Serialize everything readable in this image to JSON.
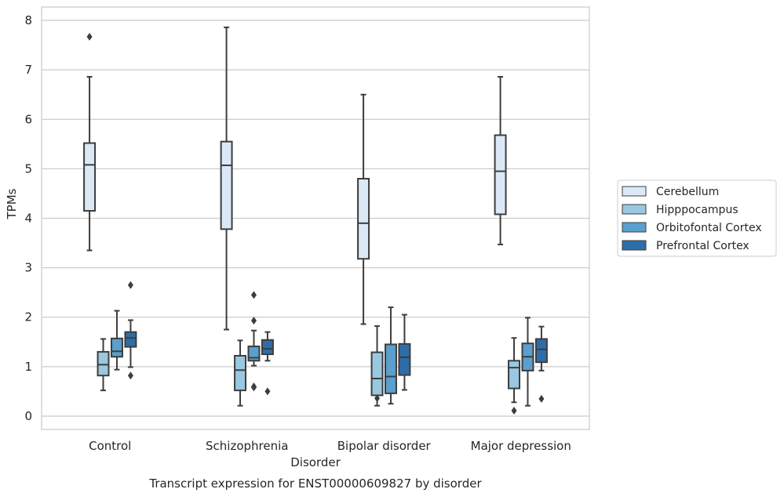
{
  "chart_data": {
    "type": "box",
    "caption": "Transcript expression for ENST00000609827 by disorder",
    "xlabel": "Disorder",
    "ylabel": "TPMs",
    "ylim": [
      -0.27,
      8.27
    ],
    "yticks": [
      0,
      1,
      2,
      3,
      4,
      5,
      6,
      7,
      8
    ],
    "grid": true,
    "legend_position": "right",
    "categories": [
      "Control",
      "Schizophrenia",
      "Bipolar disorder",
      "Major depression"
    ],
    "series": [
      {
        "name": "Cerebellum",
        "color": "#dbe9f6",
        "boxes": [
          {
            "whisker_low": 3.35,
            "q1": 4.15,
            "median": 5.08,
            "q3": 5.52,
            "whisker_high": 6.86,
            "outliers": [
              7.67
            ]
          },
          {
            "whisker_low": 1.75,
            "q1": 3.78,
            "median": 5.07,
            "q3": 5.55,
            "whisker_high": 7.86,
            "outliers": []
          },
          {
            "whisker_low": 1.86,
            "q1": 3.18,
            "median": 3.9,
            "q3": 4.8,
            "whisker_high": 6.5,
            "outliers": []
          },
          {
            "whisker_low": 3.47,
            "q1": 4.08,
            "median": 4.95,
            "q3": 5.68,
            "whisker_high": 6.86,
            "outliers": []
          }
        ]
      },
      {
        "name": "Hipppocampus",
        "color": "#9ac8e0",
        "boxes": [
          {
            "whisker_low": 0.52,
            "q1": 0.82,
            "median": 1.04,
            "q3": 1.3,
            "whisker_high": 1.56,
            "outliers": []
          },
          {
            "whisker_low": 0.21,
            "q1": 0.52,
            "median": 0.93,
            "q3": 1.22,
            "whisker_high": 1.53,
            "outliers": []
          },
          {
            "whisker_low": 0.21,
            "q1": 0.42,
            "median": 0.76,
            "q3": 1.29,
            "whisker_high": 1.82,
            "outliers": [
              0.36
            ]
          },
          {
            "whisker_low": 0.28,
            "q1": 0.56,
            "median": 0.98,
            "q3": 1.12,
            "whisker_high": 1.58,
            "outliers": [
              0.11
            ]
          }
        ]
      },
      {
        "name": "Orbitofontal Cortex",
        "color": "#5a9fcd",
        "boxes": [
          {
            "whisker_low": 0.94,
            "q1": 1.2,
            "median": 1.31,
            "q3": 1.57,
            "whisker_high": 2.13,
            "outliers": []
          },
          {
            "whisker_low": 1.02,
            "q1": 1.12,
            "median": 1.18,
            "q3": 1.41,
            "whisker_high": 1.73,
            "outliers": [
              1.93,
              2.45,
              0.58,
              0.6
            ]
          },
          {
            "whisker_low": 0.25,
            "q1": 0.46,
            "median": 0.8,
            "q3": 1.45,
            "whisker_high": 2.2,
            "outliers": []
          },
          {
            "whisker_low": 0.21,
            "q1": 0.92,
            "median": 1.2,
            "q3": 1.47,
            "whisker_high": 1.99,
            "outliers": []
          }
        ]
      },
      {
        "name": "Prefrontal Cortex",
        "color": "#2d6ea8",
        "boxes": [
          {
            "whisker_low": 0.99,
            "q1": 1.4,
            "median": 1.58,
            "q3": 1.7,
            "whisker_high": 1.94,
            "outliers": [
              2.65,
              0.82
            ]
          },
          {
            "whisker_low": 1.12,
            "q1": 1.25,
            "median": 1.36,
            "q3": 1.54,
            "whisker_high": 1.7,
            "outliers": [
              0.5
            ]
          },
          {
            "whisker_low": 0.53,
            "q1": 0.83,
            "median": 1.19,
            "q3": 1.46,
            "whisker_high": 2.05,
            "outliers": []
          },
          {
            "whisker_low": 0.92,
            "q1": 1.09,
            "median": 1.35,
            "q3": 1.56,
            "whisker_high": 1.81,
            "outliers": [
              0.35
            ]
          }
        ]
      }
    ]
  }
}
